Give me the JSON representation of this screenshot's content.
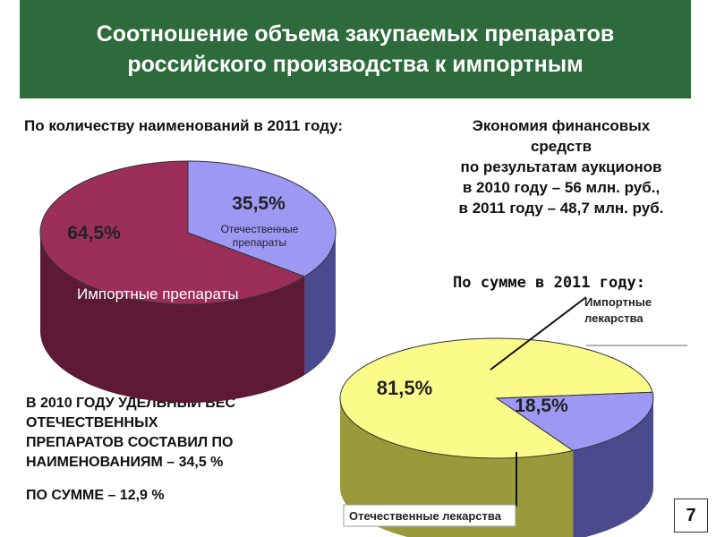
{
  "title": "Соотношение объема закупаемых препаратов российского производства к импортным",
  "subtitle_count": "По количеству наименований в 2011 году:",
  "economy_lines": [
    "Экономия финансовых",
    "средств",
    "по результатам аукционов",
    "в 2010 году – 56 млн. руб.,",
    "в 2011 году – 48,7 млн. руб."
  ],
  "subtitle_sum": "По сумме в 2011 году:",
  "note_lines": [
    "В 2010 ГОДУ УДЕЛЬНЫЙ ВЕС",
    "ОТЕЧЕСТВЕННЫХ",
    "ПРЕПАРАТОВ СОСТАВИЛ ПО",
    "НАИМЕНОВАНИЯМ – 34,5 %"
  ],
  "note_sum": "ПО СУММЕ – 12,9 %",
  "page_number": "7",
  "colors": {
    "banner": "#2e6b3c",
    "imported_top": "#9c2e5a",
    "imported_side": "#5e1a35",
    "domestic_top": "#9d98f3",
    "domestic_side": "#4a4a8e",
    "import2_top": "#fbfb8a",
    "import2_side": "#9a9a3a",
    "domestic2_top": "#9d98f3",
    "domestic2_side": "#4a4a8e"
  },
  "chart_data": [
    {
      "type": "pie",
      "title": "По количеству наименований в 2011 году:",
      "slices": [
        {
          "label": "Отечественные препараты",
          "value": 35.5,
          "value_label": "35,5%"
        },
        {
          "label": "Импортные препараты",
          "value": 64.5,
          "value_label": "64,5%"
        }
      ]
    },
    {
      "type": "pie",
      "title": "По сумме в 2011 году:",
      "slices": [
        {
          "label": "Отечественные лекарства",
          "value": 18.5,
          "value_label": "18,5%"
        },
        {
          "label": "Импортные лекарства",
          "value": 81.5,
          "value_label": "81,5%"
        }
      ]
    }
  ]
}
